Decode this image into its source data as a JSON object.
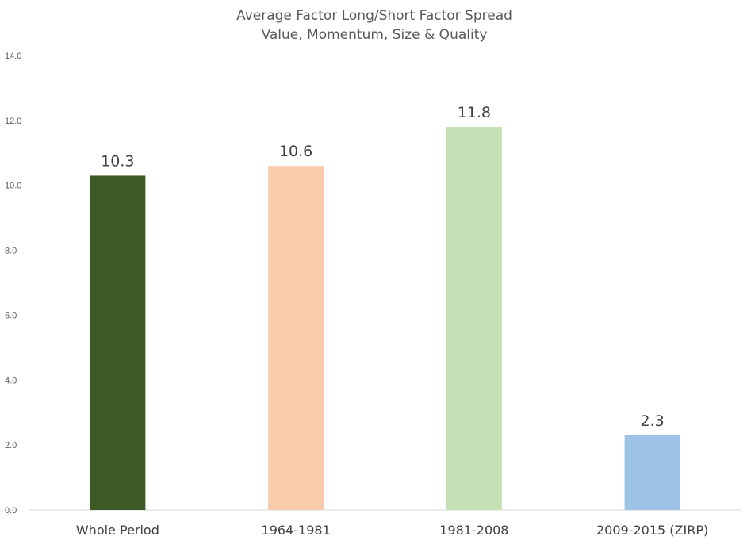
{
  "chart_data": {
    "type": "bar",
    "title": "Average Factor Long/Short Factor Spread",
    "subtitle": "Value, Momentum, Size & Quality",
    "categories": [
      "Whole Period",
      "1964-1981",
      "1981-2008",
      "2009-2015 (ZIRP)"
    ],
    "values": [
      10.3,
      10.6,
      11.8,
      2.3
    ],
    "data_labels": [
      "10.3",
      "10.6",
      "11.8",
      "2.3"
    ],
    "colors": [
      "#3b5a24",
      "#f8cbad",
      "#c5e0b4",
      "#9dc3e6"
    ],
    "ylim": [
      0,
      14
    ],
    "yticks": [
      "0.0",
      "2.0",
      "4.0",
      "6.0",
      "8.0",
      "10.0",
      "12.0",
      "14.0"
    ],
    "xlabel": "",
    "ylabel": "",
    "grid": false,
    "legend": "none"
  }
}
